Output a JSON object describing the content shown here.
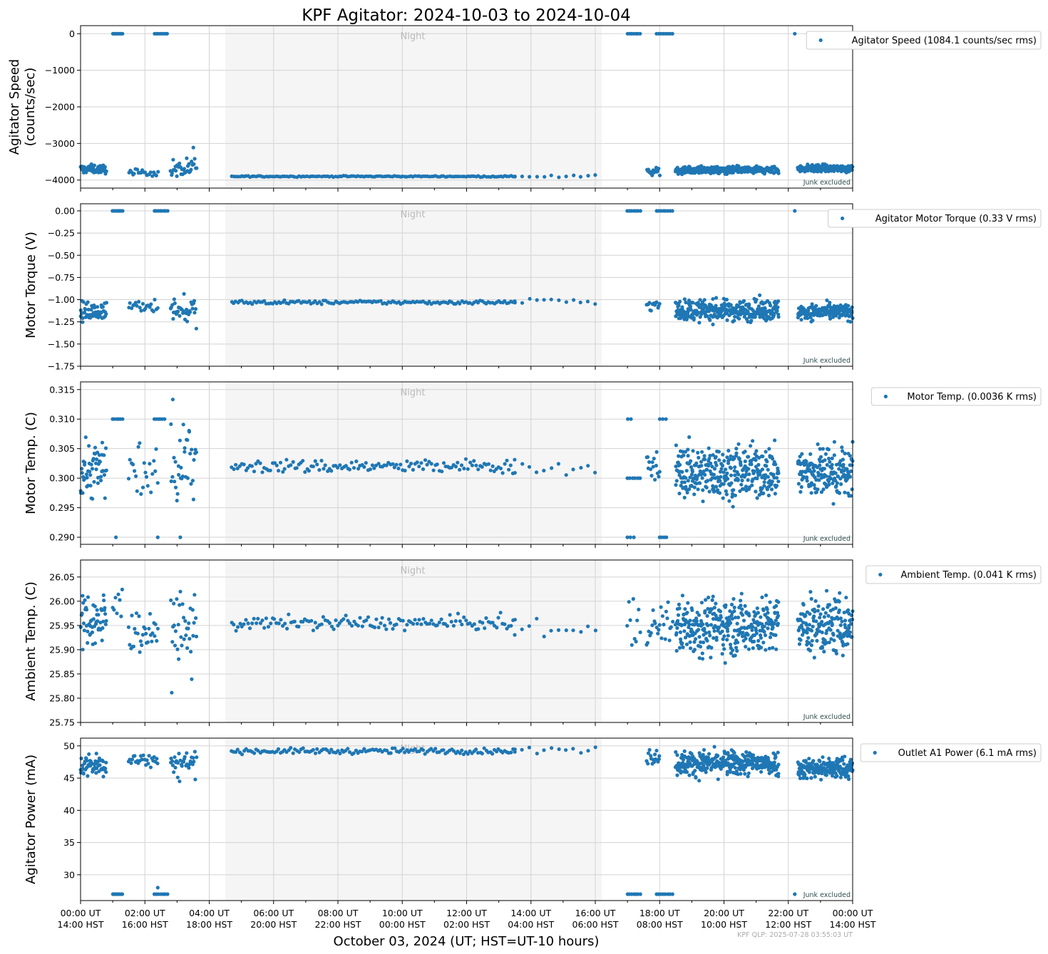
{
  "title": "KPF Agitator: 2024-10-03 to 2024-10-04",
  "xlabel": "October 03, 2024 (UT; HST=UT-10 hours)",
  "footer": "KPF QLP: 2025-07-28 03:55:03 UT",
  "night_label": "Night",
  "junk_label": "Junk excluded",
  "colors": {
    "series": "#1f77b4",
    "night": "#f5f5f5",
    "grid": "#d3d3d3",
    "text": "#000000"
  },
  "x_ticks": [
    {
      "hour": 0,
      "ut": "00:00 UT",
      "hst": "14:00 HST"
    },
    {
      "hour": 2,
      "ut": "02:00 UT",
      "hst": "16:00 HST"
    },
    {
      "hour": 4,
      "ut": "04:00 UT",
      "hst": "18:00 HST"
    },
    {
      "hour": 6,
      "ut": "06:00 UT",
      "hst": "20:00 HST"
    },
    {
      "hour": 8,
      "ut": "08:00 UT",
      "hst": "22:00 HST"
    },
    {
      "hour": 10,
      "ut": "10:00 UT",
      "hst": "00:00 HST"
    },
    {
      "hour": 12,
      "ut": "12:00 UT",
      "hst": "02:00 HST"
    },
    {
      "hour": 14,
      "ut": "14:00 UT",
      "hst": "04:00 HST"
    },
    {
      "hour": 16,
      "ut": "16:00 UT",
      "hst": "06:00 HST"
    },
    {
      "hour": 18,
      "ut": "18:00 UT",
      "hst": "08:00 HST"
    },
    {
      "hour": 20,
      "ut": "20:00 UT",
      "hst": "10:00 HST"
    },
    {
      "hour": 22,
      "ut": "22:00 UT",
      "hst": "12:00 HST"
    },
    {
      "hour": 24,
      "ut": "00:00 UT",
      "hst": "14:00 HST"
    }
  ],
  "chart_data": [
    {
      "type": "scatter",
      "ylabel": [
        "Agitator Speed",
        "(counts/sec)"
      ],
      "legend": "Agitator Speed (1084.1 counts/sec rms)",
      "legend_position": "top-right outside",
      "xlim": [
        0,
        24
      ],
      "ylim": [
        -4220,
        220
      ],
      "yticks": [
        0,
        -1000,
        -2000,
        -3000,
        -4000
      ],
      "ytick_labels": [
        "0",
        "−1000",
        "−2000",
        "−3000",
        "−4000"
      ],
      "night_span": [
        4.5,
        16.2
      ],
      "grid": true,
      "segments": [
        {
          "x0": 0.0,
          "x1": 0.8,
          "n": 55,
          "base": -3700,
          "noise": 80,
          "spike": 0,
          "spike_p": 0
        },
        {
          "x0": 1.0,
          "x1": 1.3,
          "n": 8,
          "base": 0,
          "noise": 0,
          "spike": 0,
          "spike_p": 0
        },
        {
          "x0": 2.3,
          "x1": 2.7,
          "n": 8,
          "base": 0,
          "noise": 0,
          "spike": 0,
          "spike_p": 0
        },
        {
          "x0": 1.5,
          "x1": 2.4,
          "n": 22,
          "base": -3800,
          "noise": 60,
          "spike": 0,
          "spike_p": 0
        },
        {
          "x0": 2.8,
          "x1": 3.6,
          "n": 35,
          "base": -3750,
          "noise": 150,
          "spike": 400,
          "spike_p": 0.3
        },
        {
          "x0": 4.7,
          "x1": 13.5,
          "n": 140,
          "base": -3900,
          "noise": 10,
          "spike": 0,
          "spike_p": 0
        },
        {
          "x0": 13.5,
          "x1": 16.0,
          "n": 12,
          "base": -3890,
          "noise": 30,
          "spike": 0,
          "spike_p": 0
        },
        {
          "x0": 17.0,
          "x1": 17.4,
          "n": 7,
          "base": 0,
          "noise": 0,
          "spike": 0,
          "spike_p": 0
        },
        {
          "x0": 17.9,
          "x1": 18.4,
          "n": 8,
          "base": 0,
          "noise": 0,
          "spike": 0,
          "spike_p": 0
        },
        {
          "x0": 22.2,
          "x1": 22.2,
          "n": 1,
          "base": 0,
          "noise": 0,
          "spike": 0,
          "spike_p": 0
        },
        {
          "x0": 17.6,
          "x1": 18.0,
          "n": 15,
          "base": -3780,
          "noise": 80,
          "spike": 0,
          "spike_p": 0
        },
        {
          "x0": 18.5,
          "x1": 21.7,
          "n": 320,
          "base": -3730,
          "noise": 70,
          "spike": 0,
          "spike_p": 0
        },
        {
          "x0": 22.3,
          "x1": 24.0,
          "n": 170,
          "base": -3680,
          "noise": 70,
          "spike": 0,
          "spike_p": 0
        }
      ]
    },
    {
      "type": "scatter",
      "ylabel": [
        "Motor Torque (V)"
      ],
      "legend": "Agitator Motor Torque (0.33 V rms)",
      "legend_position": "top-right outside",
      "xlim": [
        0,
        24
      ],
      "ylim": [
        -1.75,
        0.08
      ],
      "yticks": [
        0.0,
        -0.25,
        -0.5,
        -0.75,
        -1.0,
        -1.25,
        -1.5,
        -1.75
      ],
      "ytick_labels": [
        "0.00",
        "−0.25",
        "−0.50",
        "−0.75",
        "−1.00",
        "−1.25",
        "−1.50",
        "−1.75"
      ],
      "night_span": [
        4.5,
        16.2
      ],
      "grid": true,
      "segments": [
        {
          "x0": 0.0,
          "x1": 0.8,
          "n": 55,
          "base": -1.14,
          "noise": 0.07,
          "spike": 0,
          "spike_p": 0
        },
        {
          "x0": 1.0,
          "x1": 1.3,
          "n": 8,
          "base": 0,
          "noise": 0,
          "spike": 0,
          "spike_p": 0
        },
        {
          "x0": 2.3,
          "x1": 2.7,
          "n": 8,
          "base": 0,
          "noise": 0,
          "spike": 0,
          "spike_p": 0
        },
        {
          "x0": 1.5,
          "x1": 2.4,
          "n": 22,
          "base": -1.06,
          "noise": 0.05,
          "spike": 0,
          "spike_p": 0
        },
        {
          "x0": 2.8,
          "x1": 3.6,
          "n": 35,
          "base": -1.1,
          "noise": 0.1,
          "spike": -0.35,
          "spike_p": 0.2
        },
        {
          "x0": 4.7,
          "x1": 13.5,
          "n": 140,
          "base": -1.03,
          "noise": 0.015,
          "spike": 0,
          "spike_p": 0
        },
        {
          "x0": 13.5,
          "x1": 16.0,
          "n": 12,
          "base": -1.02,
          "noise": 0.03,
          "spike": 0,
          "spike_p": 0
        },
        {
          "x0": 17.0,
          "x1": 17.4,
          "n": 7,
          "base": 0,
          "noise": 0,
          "spike": 0,
          "spike_p": 0
        },
        {
          "x0": 17.9,
          "x1": 18.4,
          "n": 8,
          "base": 0,
          "noise": 0,
          "spike": 0,
          "spike_p": 0
        },
        {
          "x0": 22.2,
          "x1": 22.2,
          "n": 1,
          "base": 0,
          "noise": 0,
          "spike": 0,
          "spike_p": 0
        },
        {
          "x0": 17.6,
          "x1": 18.0,
          "n": 15,
          "base": -1.07,
          "noise": 0.05,
          "spike": 0,
          "spike_p": 0
        },
        {
          "x0": 18.5,
          "x1": 21.7,
          "n": 320,
          "base": -1.12,
          "noise": 0.08,
          "spike": 0,
          "spike_p": 0
        },
        {
          "x0": 22.3,
          "x1": 24.0,
          "n": 170,
          "base": -1.14,
          "noise": 0.06,
          "spike": 0,
          "spike_p": 0
        }
      ]
    },
    {
      "type": "scatter",
      "ylabel": [
        "Motor Temp. (C)"
      ],
      "legend": "Motor Temp. (0.0036 K rms)",
      "legend_position": "top-right outside",
      "xlim": [
        0,
        24
      ],
      "ylim": [
        0.2888,
        0.3163
      ],
      "yticks": [
        0.315,
        0.31,
        0.305,
        0.3,
        0.295,
        0.29
      ],
      "ytick_labels": [
        "0.315",
        "0.310",
        "0.305",
        "0.300",
        "0.295",
        "0.290"
      ],
      "night_span": [
        4.5,
        16.2
      ],
      "grid": true,
      "segments": [
        {
          "x0": 0.0,
          "x1": 0.8,
          "n": 55,
          "base": 0.3015,
          "noise": 0.0035,
          "spike": 0,
          "spike_p": 0
        },
        {
          "x0": 1.0,
          "x1": 1.3,
          "n": 6,
          "base": 0.31,
          "noise": 0,
          "spike": 0,
          "spike_p": 0
        },
        {
          "x0": 2.3,
          "x1": 2.6,
          "n": 6,
          "base": 0.31,
          "noise": 0,
          "spike": 0,
          "spike_p": 0
        },
        {
          "x0": 1.1,
          "x1": 1.1,
          "n": 1,
          "base": 0.29,
          "noise": 0,
          "spike": 0,
          "spike_p": 0
        },
        {
          "x0": 2.4,
          "x1": 2.4,
          "n": 1,
          "base": 0.29,
          "noise": 0,
          "spike": 0,
          "spike_p": 0
        },
        {
          "x0": 3.1,
          "x1": 3.1,
          "n": 1,
          "base": 0.29,
          "noise": 0,
          "spike": 0,
          "spike_p": 0
        },
        {
          "x0": 1.5,
          "x1": 2.4,
          "n": 22,
          "base": 0.301,
          "noise": 0.0035,
          "spike": 0,
          "spike_p": 0
        },
        {
          "x0": 2.8,
          "x1": 3.6,
          "n": 35,
          "base": 0.302,
          "noise": 0.0045,
          "spike": 0.008,
          "spike_p": 0.1
        },
        {
          "x0": 4.7,
          "x1": 13.5,
          "n": 140,
          "base": 0.302,
          "noise": 0.0008,
          "spike": 0,
          "spike_p": 0
        },
        {
          "x0": 13.5,
          "x1": 16.0,
          "n": 12,
          "base": 0.3018,
          "noise": 0.001,
          "spike": 0,
          "spike_p": 0
        },
        {
          "x0": 17.0,
          "x1": 17.4,
          "n": 6,
          "base": 0.3,
          "noise": 0,
          "spike": 0,
          "spike_p": 0
        },
        {
          "x0": 17.0,
          "x1": 17.2,
          "n": 3,
          "base": 0.29,
          "noise": 0,
          "spike": 0,
          "spike_p": 0
        },
        {
          "x0": 17.0,
          "x1": 17.1,
          "n": 2,
          "base": 0.31,
          "noise": 0,
          "spike": 0,
          "spike_p": 0
        },
        {
          "x0": 18.0,
          "x1": 18.2,
          "n": 4,
          "base": 0.29,
          "noise": 0,
          "spike": 0,
          "spike_p": 0
        },
        {
          "x0": 18.0,
          "x1": 18.2,
          "n": 3,
          "base": 0.31,
          "noise": 0,
          "spike": 0,
          "spike_p": 0
        },
        {
          "x0": 17.6,
          "x1": 18.0,
          "n": 15,
          "base": 0.301,
          "noise": 0.0025,
          "spike": 0,
          "spike_p": 0
        },
        {
          "x0": 18.5,
          "x1": 21.7,
          "n": 320,
          "base": 0.301,
          "noise": 0.003,
          "spike": 0,
          "spike_p": 0
        },
        {
          "x0": 22.3,
          "x1": 24.0,
          "n": 170,
          "base": 0.301,
          "noise": 0.003,
          "spike": 0,
          "spike_p": 0
        }
      ]
    },
    {
      "type": "scatter",
      "ylabel": [
        "Ambient Temp. (C)"
      ],
      "legend": "Ambient Temp. (0.041 K rms)",
      "legend_position": "top-right outside",
      "xlim": [
        0,
        24
      ],
      "ylim": [
        25.75,
        26.085
      ],
      "yticks": [
        26.05,
        26.0,
        25.95,
        25.9,
        25.85,
        25.8,
        25.75
      ],
      "ytick_labels": [
        "26.05",
        "26.00",
        "25.95",
        "25.90",
        "25.85",
        "25.80",
        "25.75"
      ],
      "night_span": [
        4.5,
        16.2
      ],
      "grid": true,
      "segments": [
        {
          "x0": 0.0,
          "x1": 0.8,
          "n": 55,
          "base": 25.96,
          "noise": 0.04,
          "spike": 0,
          "spike_p": 0
        },
        {
          "x0": 1.0,
          "x1": 1.3,
          "n": 8,
          "base": 25.99,
          "noise": 0.03,
          "spike": 0,
          "spike_p": 0
        },
        {
          "x0": 1.5,
          "x1": 2.4,
          "n": 30,
          "base": 25.94,
          "noise": 0.03,
          "spike": 0,
          "spike_p": 0
        },
        {
          "x0": 2.8,
          "x1": 3.6,
          "n": 35,
          "base": 25.94,
          "noise": 0.04,
          "spike": -0.12,
          "spike_p": 0.05
        },
        {
          "x0": 4.7,
          "x1": 13.5,
          "n": 140,
          "base": 25.955,
          "noise": 0.01,
          "spike": 0,
          "spike_p": 0
        },
        {
          "x0": 13.5,
          "x1": 16.0,
          "n": 12,
          "base": 25.94,
          "noise": 0.02,
          "spike": 0,
          "spike_p": 0
        },
        {
          "x0": 17.0,
          "x1": 17.4,
          "n": 10,
          "base": 25.95,
          "noise": 0.04,
          "spike": 0,
          "spike_p": 0
        },
        {
          "x0": 17.6,
          "x1": 18.4,
          "n": 25,
          "base": 25.95,
          "noise": 0.03,
          "spike": 0,
          "spike_p": 0
        },
        {
          "x0": 18.5,
          "x1": 21.7,
          "n": 320,
          "base": 25.95,
          "noise": 0.04,
          "spike": 0,
          "spike_p": 0
        },
        {
          "x0": 22.3,
          "x1": 24.0,
          "n": 170,
          "base": 25.95,
          "noise": 0.04,
          "spike": 0,
          "spike_p": 0
        }
      ]
    },
    {
      "type": "scatter",
      "ylabel": [
        "Agitator Power (mA)"
      ],
      "legend": "Outlet A1 Power (6.1 mA rms)",
      "legend_position": "top-right outside",
      "xlim": [
        0,
        24
      ],
      "ylim": [
        26,
        51.2
      ],
      "yticks": [
        50,
        45,
        40,
        35,
        30
      ],
      "ytick_labels": [
        "50",
        "45",
        "40",
        "35",
        "30"
      ],
      "night_span": [
        4.5,
        16.2
      ],
      "grid": true,
      "segments": [
        {
          "x0": 0.0,
          "x1": 0.8,
          "n": 55,
          "base": 47.0,
          "noise": 1.2,
          "spike": 0,
          "spike_p": 0
        },
        {
          "x0": 1.0,
          "x1": 1.3,
          "n": 8,
          "base": 27.0,
          "noise": 0,
          "spike": 0,
          "spike_p": 0
        },
        {
          "x0": 2.3,
          "x1": 2.7,
          "n": 7,
          "base": 27.0,
          "noise": 0,
          "spike": 0,
          "spike_p": 0
        },
        {
          "x0": 2.4,
          "x1": 2.4,
          "n": 1,
          "base": 28.0,
          "noise": 0,
          "spike": 0,
          "spike_p": 0
        },
        {
          "x0": 1.5,
          "x1": 2.4,
          "n": 25,
          "base": 47.8,
          "noise": 0.8,
          "spike": 0,
          "spike_p": 0
        },
        {
          "x0": 2.8,
          "x1": 3.6,
          "n": 35,
          "base": 47.5,
          "noise": 1.0,
          "spike": -5.0,
          "spike_p": 0.15
        },
        {
          "x0": 4.7,
          "x1": 13.5,
          "n": 140,
          "base": 49.2,
          "noise": 0.3,
          "spike": 0,
          "spike_p": 0
        },
        {
          "x0": 13.5,
          "x1": 16.0,
          "n": 12,
          "base": 49.3,
          "noise": 0.4,
          "spike": 0,
          "spike_p": 0
        },
        {
          "x0": 17.0,
          "x1": 17.4,
          "n": 7,
          "base": 27.0,
          "noise": 0,
          "spike": 0,
          "spike_p": 0
        },
        {
          "x0": 17.9,
          "x1": 18.4,
          "n": 8,
          "base": 27.0,
          "noise": 0,
          "spike": 0,
          "spike_p": 0
        },
        {
          "x0": 22.2,
          "x1": 22.2,
          "n": 1,
          "base": 27.0,
          "noise": 0,
          "spike": 0,
          "spike_p": 0
        },
        {
          "x0": 17.6,
          "x1": 18.0,
          "n": 15,
          "base": 48.5,
          "noise": 1.0,
          "spike": 0,
          "spike_p": 0
        },
        {
          "x0": 18.5,
          "x1": 21.7,
          "n": 320,
          "base": 47.3,
          "noise": 1.3,
          "spike": 0,
          "spike_p": 0
        },
        {
          "x0": 22.3,
          "x1": 24.0,
          "n": 170,
          "base": 46.5,
          "noise": 1.2,
          "spike": 0,
          "spike_p": 0
        }
      ]
    }
  ]
}
